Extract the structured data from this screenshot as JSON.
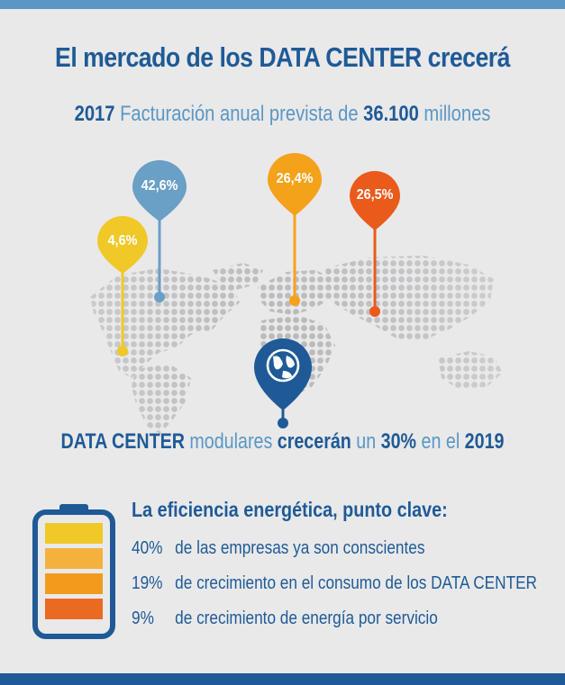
{
  "header": {
    "title": "El mercado de los DATA CENTER crecerá",
    "year": "2017",
    "forecast_text": "Facturación anual prevista de",
    "amount": "36.100",
    "unit": "millones"
  },
  "map_pins": [
    {
      "label": "4,6%",
      "color": "#f0c828"
    },
    {
      "label": "42,6%",
      "color": "#6a9fc6"
    },
    {
      "label": "26,4%",
      "color": "#f5a21b"
    },
    {
      "label": "26,5%",
      "color": "#ea5a1b"
    }
  ],
  "globe_pin": {
    "icon": "globe-icon",
    "color": "#1f5a96"
  },
  "modular": {
    "part1": "DATA CENTER",
    "part2": "modulares",
    "part3": "crecerán",
    "part4": "un",
    "part5": "30%",
    "part6": "en el",
    "part7": "2019"
  },
  "efficiency": {
    "title": "La eficiencia energética, punto clave:",
    "battery_icon": "battery-icon",
    "battery_colors": [
      "#f0c828",
      "#f5b13e",
      "#f39a1c",
      "#ea6a1f"
    ],
    "stats": [
      {
        "pct": "40%",
        "text": "de las empresas ya son conscientes"
      },
      {
        "pct": "19%",
        "text": "de crecimiento en el consumo de los DATA CENTER"
      },
      {
        "pct": "9%",
        "text": "de crecimiento de energía por servicio"
      }
    ]
  },
  "colors": {
    "dark_blue": "#1f5a96",
    "light_blue": "#5a97c4",
    "background": "#e9e9ea"
  }
}
